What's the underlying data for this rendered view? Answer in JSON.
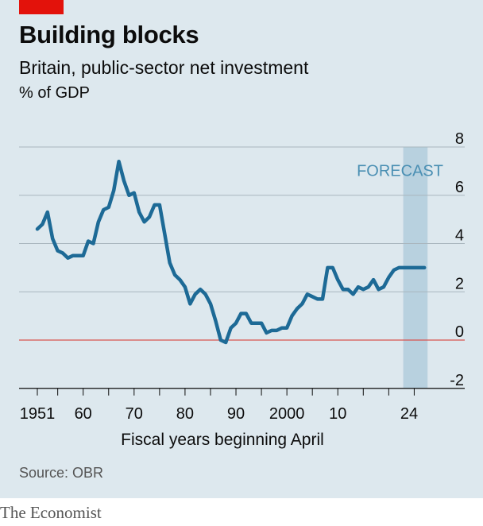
{
  "header": {
    "title": "Building blocks",
    "subtitle": "Britain, public-sector net investment",
    "unit": "% of GDP"
  },
  "footer": {
    "xaxis_title": "Fiscal years beginning April",
    "source": "Source: OBR",
    "brand": "The Economist"
  },
  "colors": {
    "background": "#dde8ee",
    "line": "#1d6a96",
    "zero_line": "#d9534f",
    "forecast_band": "#b8d1df",
    "forecast_label": "#4a8fb3",
    "grid": "#a9b6be",
    "brand_tag": "#e3120b"
  },
  "chart_data": {
    "type": "line",
    "xlabel": "Fiscal years beginning April",
    "ylabel": "% of GDP",
    "ylim": [
      -2,
      8
    ],
    "yticks": [
      -2,
      0,
      2,
      4,
      6,
      8
    ],
    "ytick_labels": [
      "-2",
      "0",
      "2",
      "4",
      "6",
      "8"
    ],
    "xticks": [
      1951,
      1960,
      1970,
      1980,
      1990,
      2000,
      2010,
      2024
    ],
    "xtick_labels": [
      "1951",
      "60",
      "70",
      "80",
      "90",
      "2000",
      "10",
      "24"
    ],
    "grid": true,
    "forecast": {
      "label": "FORECAST",
      "start": 2023,
      "end": 2027
    },
    "series": [
      {
        "x": [
          1951,
          1952,
          1953,
          1954,
          1955,
          1956,
          1957,
          1958,
          1959,
          1960,
          1961,
          1962,
          1963,
          1964,
          1965,
          1966,
          1967,
          1968,
          1969,
          1970,
          1971,
          1972,
          1973,
          1974,
          1975,
          1976,
          1977,
          1978,
          1979,
          1980,
          1981,
          1982,
          1983,
          1984,
          1985,
          1986,
          1987,
          1988,
          1989,
          1990,
          1991,
          1992,
          1993,
          1994,
          1995,
          1996,
          1997,
          1998,
          1999,
          2000,
          2001,
          2002,
          2003,
          2004,
          2005,
          2006,
          2007,
          2008,
          2009,
          2010,
          2011,
          2012,
          2013,
          2014,
          2015,
          2016,
          2017,
          2018,
          2019,
          2020,
          2021,
          2022,
          2023,
          2024,
          2025,
          2026,
          2027
        ],
        "values": [
          4.6,
          4.8,
          5.3,
          4.2,
          3.7,
          3.6,
          3.4,
          3.5,
          3.5,
          3.5,
          4.1,
          4.0,
          4.9,
          5.4,
          5.5,
          6.2,
          7.4,
          6.6,
          6.0,
          6.1,
          5.3,
          4.9,
          5.1,
          5.6,
          5.6,
          4.4,
          3.2,
          2.7,
          2.5,
          2.2,
          1.5,
          1.9,
          2.1,
          1.9,
          1.5,
          0.8,
          0.0,
          -0.1,
          0.5,
          0.7,
          1.1,
          1.1,
          0.7,
          0.7,
          0.7,
          0.3,
          0.4,
          0.4,
          0.5,
          0.5,
          1.0,
          1.3,
          1.5,
          1.9,
          1.8,
          1.7,
          1.7,
          3.0,
          3.0,
          2.5,
          2.1,
          2.1,
          1.9,
          2.2,
          2.1,
          2.2,
          2.5,
          2.1,
          2.2,
          2.6,
          2.9,
          3.0,
          3.0,
          3.0,
          3.0,
          3.0,
          3.0
        ]
      }
    ]
  }
}
